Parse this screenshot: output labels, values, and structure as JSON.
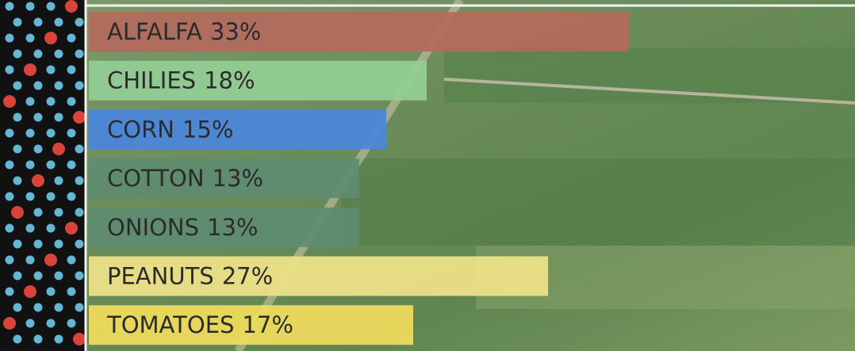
{
  "chart_data": {
    "type": "bar",
    "orientation": "horizontal",
    "categories": [
      "ALFALFA",
      "CHILIES",
      "CORN",
      "COTTON",
      "ONIONS",
      "PEANUTS",
      "TOMATOES"
    ],
    "values": [
      33,
      18,
      15,
      13,
      13,
      27,
      17
    ],
    "value_labels": [
      "33%",
      "18%",
      "15%",
      "13%",
      "13%",
      "27%",
      "17%"
    ],
    "colors": [
      "#b46a5c",
      "#93cf94",
      "#4a86dc",
      "#5f8c70",
      "#5f8c70",
      "#efe289",
      "#f0dc5c"
    ]
  }
}
